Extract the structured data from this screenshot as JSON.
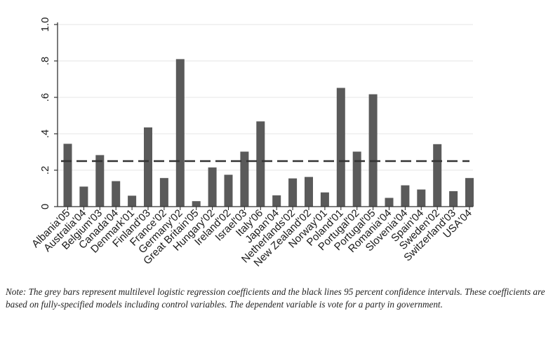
{
  "chart_data": {
    "type": "bar",
    "categories": [
      "Albania'05",
      "Australia'04",
      "Belgium'03",
      "Canada'04",
      "Denmark'01",
      "Finland'03",
      "France'02",
      "Germany'02",
      "Great Britain'05",
      "Hungary'02",
      "Ireland'02",
      "Israel'03",
      "Italy'06",
      "Japan'04",
      "Netherlands'02",
      "New Zealand'02",
      "Norway'01",
      "Poland'01",
      "Portugal'02",
      "Portugal'05",
      "Romania'04",
      "Slovenia'04",
      "Spain'04",
      "Sweden'02",
      "Switzerland'03",
      "USA'04"
    ],
    "values": [
      0.345,
      0.11,
      0.283,
      0.14,
      0.06,
      0.435,
      0.157,
      0.81,
      0.03,
      0.215,
      0.175,
      0.302,
      0.468,
      0.062,
      0.155,
      0.163,
      0.078,
      0.652,
      0.302,
      0.617,
      0.048,
      0.117,
      0.094,
      0.343,
      0.085,
      0.157
    ],
    "ylim": [
      0,
      1.0
    ],
    "yticks": [
      0,
      0.2,
      0.4,
      0.6,
      0.8,
      1.0
    ],
    "ytick_labels": [
      "0",
      ".2",
      ".4",
      ".6",
      ".8",
      "1.0"
    ],
    "reference_line": 0.25,
    "grid": true,
    "bar_color": "#5a5a5a",
    "grid_color": "#e6e6e6",
    "reference_line_color": "#333333"
  },
  "note": "Note: The grey bars represent multilevel logistic regression coefficients and the black lines 95 percent confidence intervals. These coefficients are based on fully-specified models including control variables. The dependent variable is vote for a party in government."
}
